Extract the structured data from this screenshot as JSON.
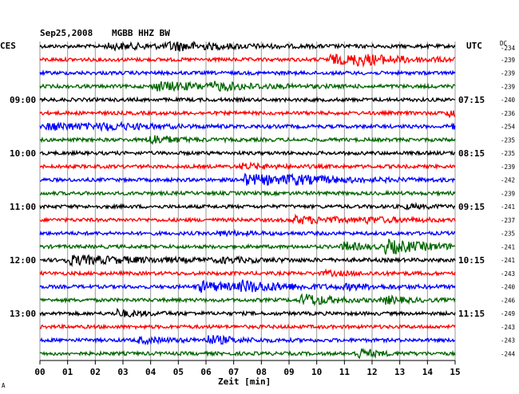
{
  "header": {
    "date": "Sep25,2008",
    "station": "MGBB HHZ BW",
    "left_tz": "CES",
    "right_tz": "UTC",
    "dc_label": "DC"
  },
  "footer": {
    "xlabel": "Zeit [min]",
    "corner_mark": "A"
  },
  "colors": {
    "cycle": [
      "#000000",
      "#ff0000",
      "#0000ff",
      "#006600"
    ],
    "grid": "#999999"
  },
  "chart_data": {
    "type": "line",
    "title": "Sep25,2008 MGBB HHZ BW",
    "xlabel": "Zeit [min]",
    "xlim": [
      0,
      15
    ],
    "x_ticks": [
      "00",
      "01",
      "02",
      "03",
      "04",
      "05",
      "06",
      "07",
      "08",
      "09",
      "10",
      "11",
      "12",
      "13",
      "14",
      "15"
    ],
    "left_time_labels": [
      {
        "trace": 4,
        "text": "09:00"
      },
      {
        "trace": 8,
        "text": "10:00"
      },
      {
        "trace": 12,
        "text": "11:00"
      },
      {
        "trace": 16,
        "text": "12:00"
      },
      {
        "trace": 20,
        "text": "13:00"
      }
    ],
    "right_time_labels": [
      {
        "trace": 4,
        "text": "07:15"
      },
      {
        "trace": 8,
        "text": "08:15"
      },
      {
        "trace": 12,
        "text": "09:15"
      },
      {
        "trace": 16,
        "text": "10:15"
      },
      {
        "trace": 20,
        "text": "11:15"
      }
    ],
    "dc_offsets": [
      -234,
      -239,
      -239,
      -239,
      -240,
      -236,
      -254,
      -235,
      -235,
      -239,
      -242,
      -239,
      -241,
      -237,
      -235,
      -241,
      -241,
      -243,
      -240,
      -246,
      -249,
      -243,
      -243,
      -244
    ],
    "grid": true,
    "traces": [
      {
        "bursts": [
          [
            2.5,
            3,
            2.6
          ],
          [
            4.7,
            4,
            1.8
          ]
        ]
      },
      {
        "bursts": [
          [
            10.5,
            5,
            2.0
          ],
          [
            11.4,
            4,
            1.5
          ]
        ]
      },
      {
        "bursts": []
      },
      {
        "bursts": [
          [
            4.2,
            5,
            2.2
          ],
          [
            6.3,
            3,
            1.3
          ]
        ]
      },
      {
        "bursts": []
      },
      {
        "bursts": [
          [
            14.8,
            4,
            1.0
          ]
        ]
      },
      {
        "bursts": [
          [
            0.3,
            4,
            2.2
          ],
          [
            2.3,
            3,
            1.2
          ],
          [
            14.9,
            3,
            2.0
          ]
        ]
      },
      {
        "bursts": [
          [
            4.0,
            6,
            0.8
          ]
        ]
      },
      {
        "bursts": []
      },
      {
        "bursts": [
          [
            7.3,
            3,
            1.0
          ]
        ]
      },
      {
        "bursts": [
          [
            7.4,
            6,
            2.5
          ],
          [
            9.0,
            3,
            1.2
          ]
        ]
      },
      {
        "bursts": []
      },
      {
        "bursts": [
          [
            13.2,
            2,
            1.0
          ]
        ]
      },
      {
        "bursts": [
          [
            9.2,
            4,
            2.0
          ],
          [
            11.8,
            2,
            1.3
          ]
        ]
      },
      {
        "bursts": [
          [
            6.5,
            2,
            1.0
          ]
        ]
      },
      {
        "bursts": [
          [
            12.5,
            8,
            1.5
          ],
          [
            11.0,
            5,
            0.7
          ]
        ]
      },
      {
        "bursts": [
          [
            1.0,
            5,
            3.0
          ],
          [
            6.5,
            2,
            1.3
          ]
        ]
      },
      {
        "bursts": [
          [
            10.3,
            2,
            1.3
          ]
        ]
      },
      {
        "bursts": [
          [
            5.8,
            6,
            1.3
          ],
          [
            7.3,
            5,
            2.0
          ],
          [
            11.1,
            2,
            1.3
          ]
        ]
      },
      {
        "bursts": [
          [
            9.5,
            8,
            0.9
          ],
          [
            12.5,
            4,
            0.7
          ]
        ]
      },
      {
        "bursts": [
          [
            2.8,
            4,
            0.9
          ]
        ]
      },
      {
        "bursts": []
      },
      {
        "bursts": [
          [
            3.6,
            3,
            1.2
          ],
          [
            6.1,
            5,
            0.9
          ]
        ]
      },
      {
        "bursts": [
          [
            11.5,
            6,
            0.6
          ]
        ]
      }
    ]
  }
}
